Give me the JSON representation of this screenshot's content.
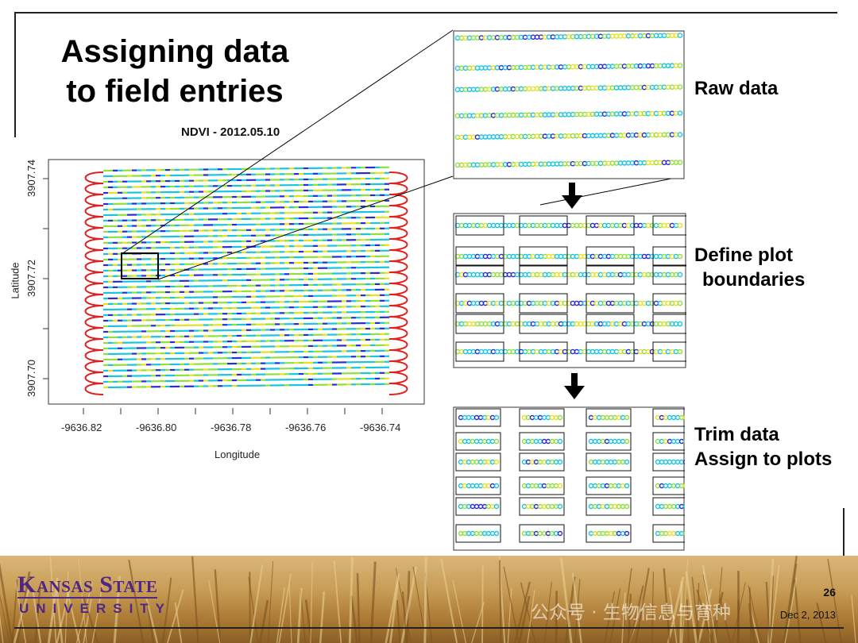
{
  "slide": {
    "title_line1": "Assigning data",
    "title_line2": "to field entries",
    "number": "26",
    "date": "Dec 2, 2013"
  },
  "plot": {
    "title": "NDVI - 2012.05.10",
    "xlabel": "Longitude",
    "ylabel": "Latitude",
    "xticks": [
      "-9636.82",
      "-9636.80",
      "-9636.78",
      "-9636.76",
      "-9636.74"
    ],
    "yticks": [
      "3907.74",
      "3907.72",
      "3907.70"
    ]
  },
  "steps": {
    "raw_label": "Raw data",
    "define_line1": "Define plot",
    "define_line2": "boundaries",
    "trim_line1": "Trim data",
    "assign_line2": "Assign to plots"
  },
  "branding": {
    "name": "Kansas State",
    "university": "UNIVERSITY",
    "watermark": "公众号 · 生物信息与育种"
  },
  "colors": {
    "ksu_purple": "#4f2683",
    "ndvi_low": "#2b2bd6",
    "ndvi_mid": "#19c4e0",
    "ndvi_high": "#8fe03a",
    "ndvi_peak": "#e8e020",
    "ndvi_edge": "#e02020"
  }
}
